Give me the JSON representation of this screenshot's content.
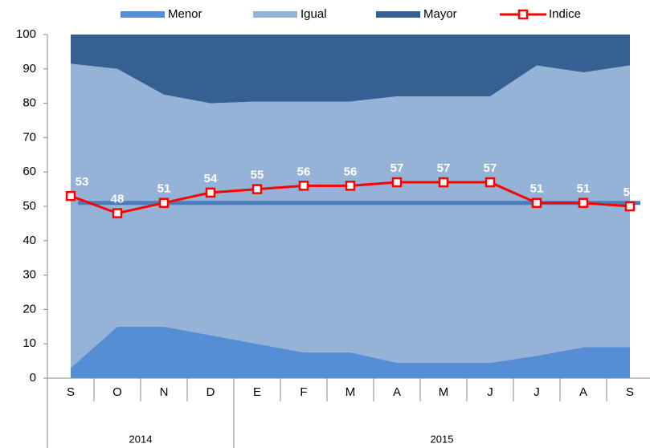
{
  "chart_data": {
    "type": "area",
    "categories": [
      "S",
      "O",
      "N",
      "D",
      "E",
      "F",
      "M",
      "A",
      "M",
      "J",
      "J",
      "A",
      "S"
    ],
    "groups": [
      {
        "name": "2014",
        "count": 4
      },
      {
        "name": "2015",
        "count": 9
      }
    ],
    "series": [
      {
        "name": "Menor",
        "type": "area",
        "color": "#558ed5",
        "values": [
          3,
          15,
          15,
          12.5,
          10,
          7.5,
          7.5,
          4.5,
          4.5,
          4.5,
          6.5,
          9,
          9
        ]
      },
      {
        "name": "Igual",
        "type": "area",
        "color": "#95b3d7",
        "values": [
          88.5,
          75,
          67.5,
          67.5,
          70.5,
          73,
          73,
          77.5,
          77.5,
          77.5,
          84.5,
          80,
          82
        ]
      },
      {
        "name": "Mayor",
        "type": "area",
        "color": "#376092",
        "values": [
          8.5,
          10,
          17.5,
          20,
          19.5,
          19.5,
          19.5,
          18,
          18,
          18,
          9,
          11,
          9
        ]
      },
      {
        "name": "Indice",
        "type": "line",
        "color": "#ff0000",
        "values": [
          53,
          48,
          51,
          54,
          55,
          56,
          56,
          57,
          57,
          57,
          51,
          51,
          50
        ]
      }
    ],
    "reference_line": {
      "value": 51,
      "color": "#4a7ebb"
    },
    "ylim": [
      0,
      100
    ],
    "yticks": [
      0,
      10,
      20,
      30,
      40,
      50,
      60,
      70,
      80,
      90,
      100
    ],
    "grid": false
  }
}
